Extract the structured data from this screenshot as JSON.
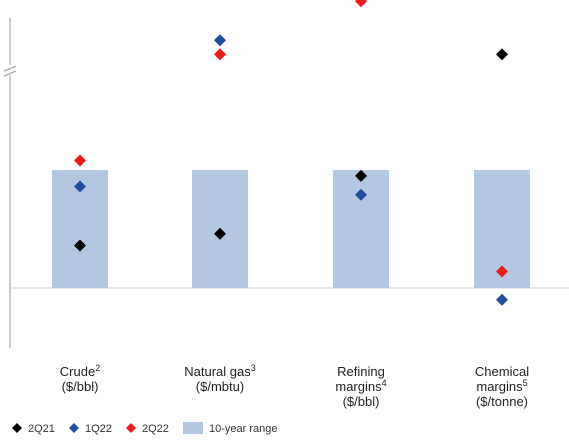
{
  "chart_data": {
    "type": "scatter",
    "note_axis": "Indexed scale with axis break; no numeric tick labels shown",
    "categories": [
      {
        "label": "Crude",
        "sup": "2",
        "unit": "($/bbl)"
      },
      {
        "label": "Natural gas",
        "sup": "3",
        "unit": "($/mbtu)"
      },
      {
        "label": "Refining margins",
        "sup": "4",
        "unit": "($/bbl)"
      },
      {
        "label": "Chemical margins",
        "sup": "5",
        "unit": "($/tonne)"
      }
    ],
    "range_band": {
      "name": "10-year range",
      "color": "#b4c7e1",
      "low": [
        0,
        0,
        0,
        0
      ],
      "high": [
        100,
        100,
        100,
        100
      ]
    },
    "series": [
      {
        "name": "2Q21",
        "color": "#000000",
        "values": [
          36,
          46,
          95,
          198
        ]
      },
      {
        "name": "1Q22",
        "color": "#1f4e9c",
        "values": [
          86,
          210,
          79,
          -10
        ]
      },
      {
        "name": "2Q22",
        "color": "#f01818",
        "values": [
          108,
          198,
          243,
          14
        ]
      }
    ],
    "axis_break": true,
    "legend_position": "bottom-left"
  }
}
